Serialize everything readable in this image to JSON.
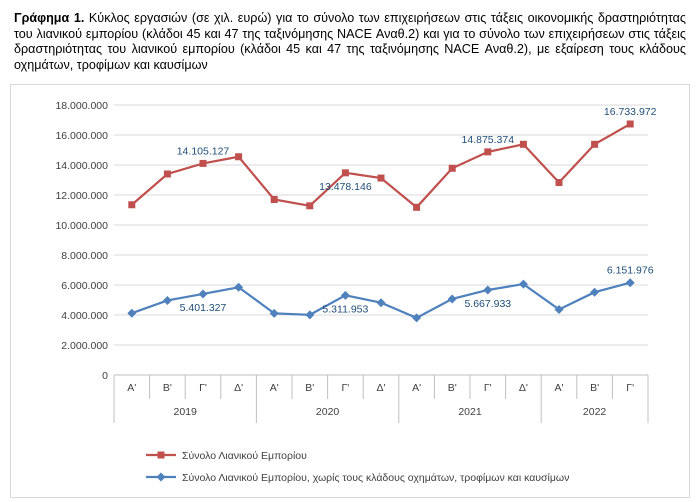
{
  "caption": {
    "prefix": "Γράφημα 1.",
    "text": "Κύκλος εργασιών (σε χιλ. ευρώ) για το σύνολο των επιχειρήσεων στις τάξεις οικονομικής δραστηριότητας του λιανικού εμπορίου (κλάδοι 45 και 47 της ταξινόμησης NACE Αναθ.2) και για το σύνολο των επιχειρήσεων στις τάξεις δραστηριότητας του λιανικού εμπορίου (κλάδοι 45 και 47 της ταξινόμησης NACE Αναθ.2), με εξαίρεση τους κλάδους οχημάτων, τροφίμων και καυσίμων"
  },
  "chart_data": {
    "type": "line",
    "categories": [
      "Α'",
      "Β'",
      "Γ'",
      "Δ'",
      "Α'",
      "Β'",
      "Γ'",
      "Δ'",
      "Α'",
      "Β'",
      "Γ'",
      "Δ'",
      "Α'",
      "Β'",
      "Γ'"
    ],
    "years": [
      {
        "label": "2019",
        "span": 4
      },
      {
        "label": "2020",
        "span": 4
      },
      {
        "label": "2021",
        "span": 4
      },
      {
        "label": "2022",
        "span": 3
      }
    ],
    "ylim": [
      0,
      18000000
    ],
    "yticks": [
      0,
      2000000,
      4000000,
      6000000,
      8000000,
      10000000,
      12000000,
      14000000,
      16000000,
      18000000
    ],
    "ytick_labels": [
      "0",
      "2.000.000",
      "4.000.000",
      "6.000.000",
      "8.000.000",
      "10.000.000",
      "12.000.000",
      "14.000.000",
      "16.000.000",
      "18.000.000"
    ],
    "grid": true,
    "legend_position": "bottom",
    "series": [
      {
        "name": "Σύνολο Λιανικού Εμπορίου",
        "color": "#c0504d",
        "marker": "square",
        "values": [
          11350000,
          13400000,
          14105127,
          14550000,
          11700000,
          11280000,
          13478146,
          13130000,
          11180000,
          13780000,
          14875374,
          15380000,
          12830000,
          15380000,
          16733972
        ],
        "labels": [
          {
            "index": 2,
            "text": "14.105.127",
            "position": "above"
          },
          {
            "index": 6,
            "text": "13.478.146",
            "position": "below"
          },
          {
            "index": 10,
            "text": "14.875.374",
            "position": "above"
          },
          {
            "index": 14,
            "text": "16.733.972",
            "position": "above"
          }
        ]
      },
      {
        "name": "Σύνολο Λιανικού Εμπορίου, χωρίς τους κλάδους οχημάτων, τροφίμων και καυσίμων",
        "color": "#4f81bd",
        "marker": "diamond",
        "values": [
          4120000,
          4970000,
          5401327,
          5850000,
          4110000,
          4010000,
          5311953,
          4820000,
          3810000,
          5070000,
          5667933,
          6060000,
          4370000,
          5520000,
          6151976
        ],
        "labels": [
          {
            "index": 2,
            "text": "5.401.327",
            "position": "below"
          },
          {
            "index": 6,
            "text": "5.311.953",
            "position": "below"
          },
          {
            "index": 10,
            "text": "5.667.933",
            "position": "below"
          },
          {
            "index": 14,
            "text": "6.151.976",
            "position": "above"
          }
        ]
      }
    ]
  }
}
